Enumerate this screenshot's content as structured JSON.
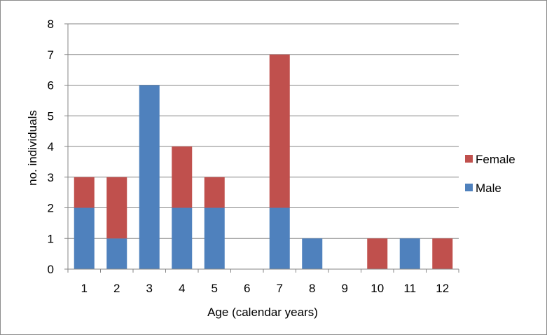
{
  "chart_data": {
    "type": "bar",
    "stacked": true,
    "title": "",
    "xlabel": "Age (calendar years)",
    "ylabel": "no. individuals",
    "categories": [
      "1",
      "2",
      "3",
      "4",
      "5",
      "6",
      "7",
      "8",
      "9",
      "10",
      "11",
      "12"
    ],
    "series": [
      {
        "name": "Male",
        "color": "#4f81bd",
        "values": [
          2,
          1,
          6,
          2,
          2,
          0,
          2,
          1,
          0,
          0,
          1,
          0
        ]
      },
      {
        "name": "Female",
        "color": "#c0504d",
        "values": [
          1,
          2,
          0,
          2,
          1,
          0,
          5,
          0,
          0,
          1,
          0,
          1
        ]
      }
    ],
    "ylim": [
      0,
      8
    ],
    "yticks": [
      "0",
      "1",
      "2",
      "3",
      "4",
      "5",
      "6",
      "7",
      "8"
    ],
    "grid": true,
    "legend": {
      "placement": "right",
      "entries": [
        {
          "label": "Female",
          "color": "#c0504d"
        },
        {
          "label": "Male",
          "color": "#4f81bd"
        }
      ]
    }
  }
}
